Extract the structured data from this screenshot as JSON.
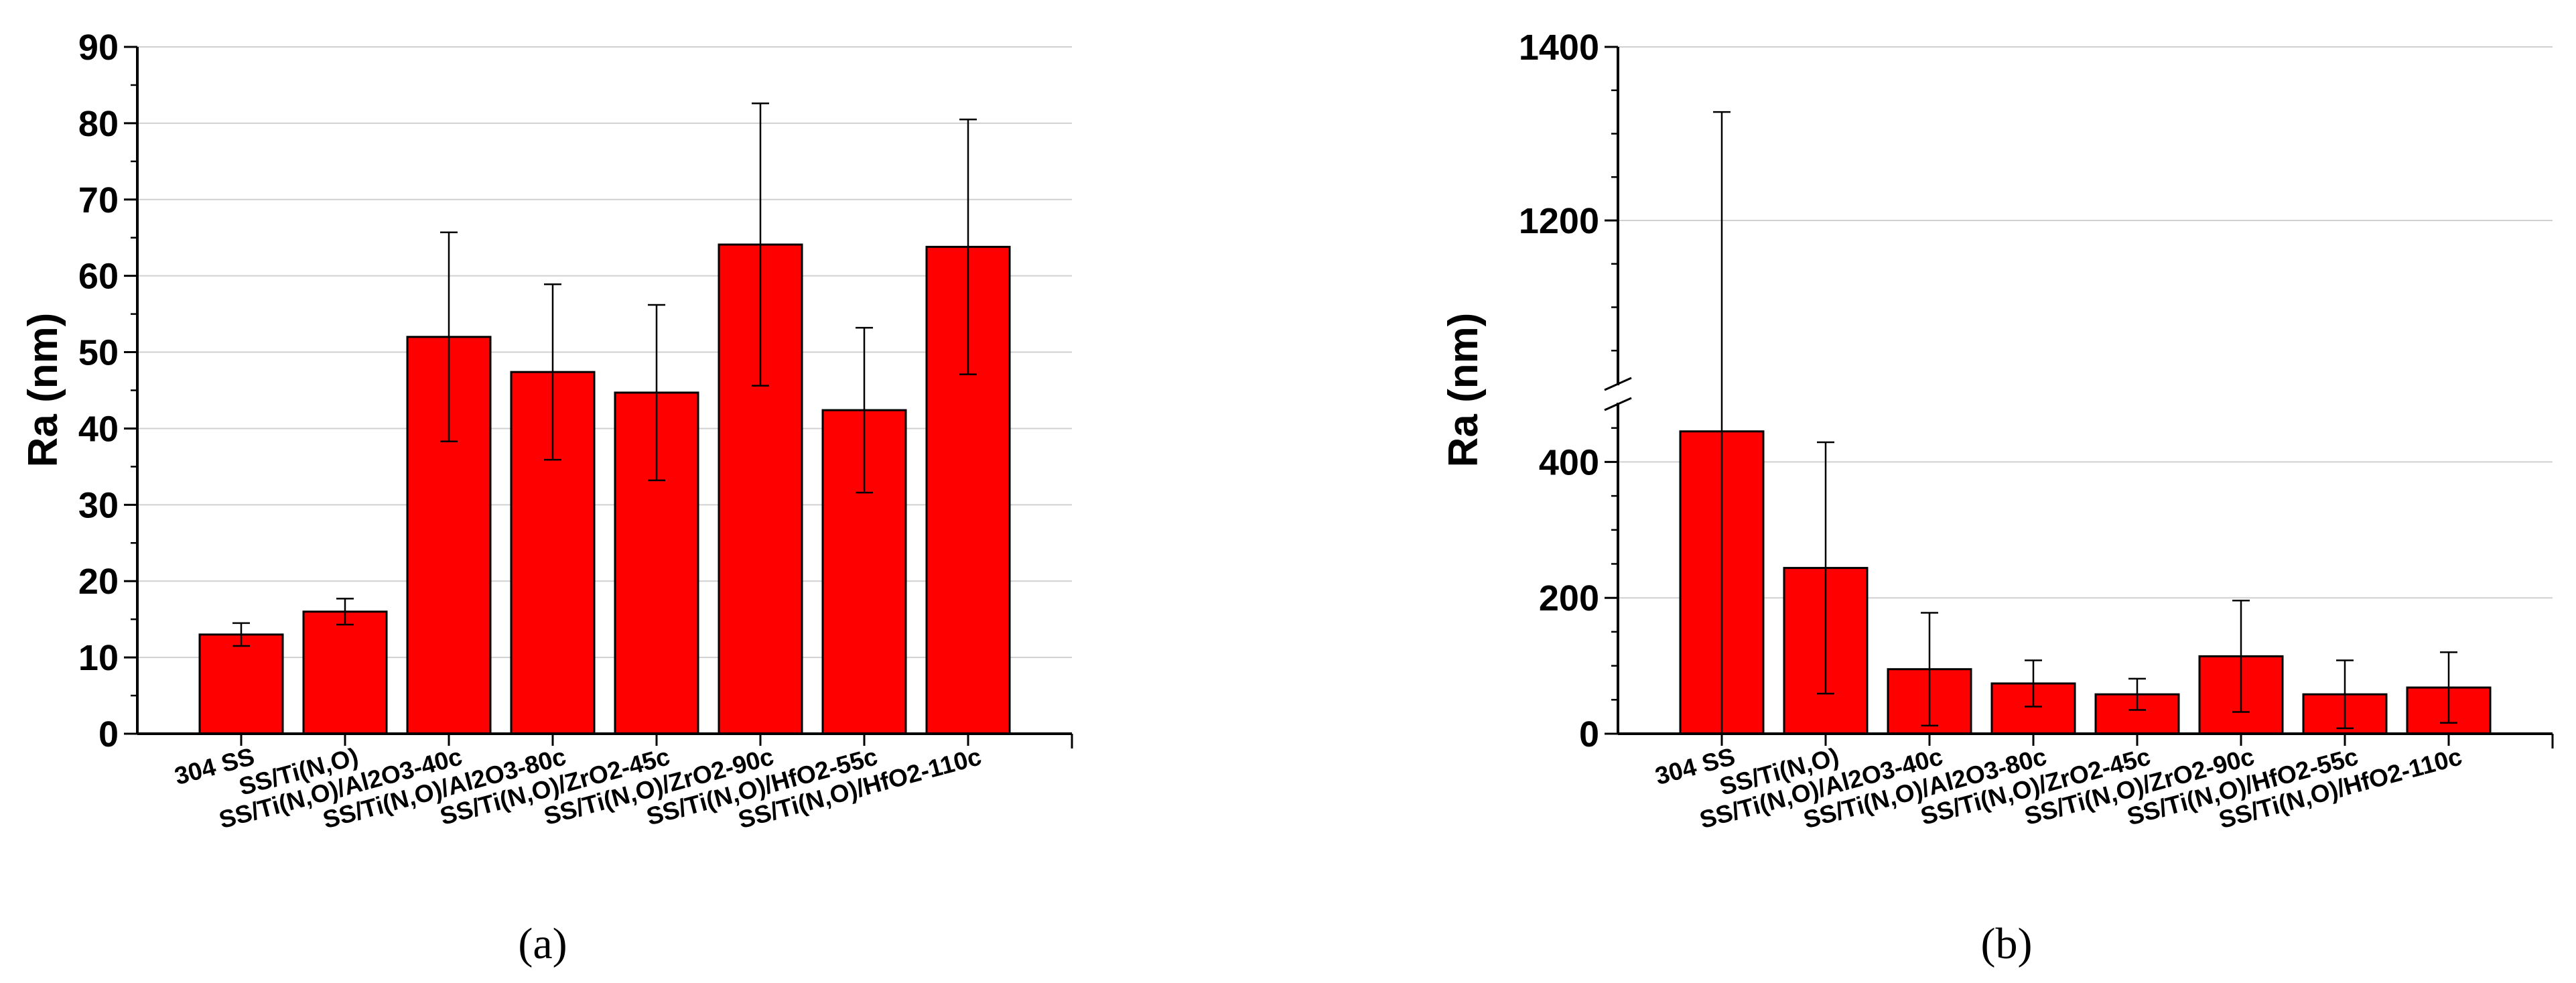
{
  "chart_data": [
    {
      "type": "bar",
      "panel_label": "(a)",
      "ylabel": "Ra (nm)",
      "ylim": [
        0,
        90
      ],
      "yticks": [
        "0",
        "10",
        "20",
        "30",
        "40",
        "50",
        "60",
        "70",
        "80",
        "90"
      ],
      "categories": [
        "304 SS",
        "SS/Ti(N,O)",
        "SS/Ti(N,O)/Al2O3-40c",
        "SS/Ti(N,O)/Al2O3-80c",
        "SS/Ti(N,O)/ZrO2-45c",
        "SS/Ti(N,O)/ZrO2-90c",
        "SS/Ti(N,O)/HfO2-55c",
        "SS/Ti(N,O)/HfO2-110c"
      ],
      "values": [
        13,
        16,
        52,
        47.4,
        44.7,
        64.1,
        42.4,
        63.8
      ],
      "error": [
        1.5,
        1.7,
        13.7,
        11.5,
        11.5,
        18.5,
        10.8,
        16.7
      ],
      "bar_color": "#ff0000",
      "grid": true,
      "legend": "none"
    },
    {
      "type": "bar",
      "panel_label": "(b)",
      "ylabel": "Ra (nm)",
      "y_axis_break": true,
      "ylim_lower": [
        0,
        500
      ],
      "ylim_upper": [
        1000,
        1400
      ],
      "yticks": [
        "0",
        "200",
        "400",
        "1200",
        "1400"
      ],
      "categories": [
        "304 SS",
        "SS/Ti(N,O)",
        "SS/Ti(N,O)/Al2O3-40c",
        "SS/Ti(N,O)/Al2O3-80c",
        "SS/Ti(N,O)/ZrO2-45c",
        "SS/Ti(N,O)/ZrO2-90c",
        "SS/Ti(N,O)/HfO2-55c",
        "SS/Ti(N,O)/HfO2-110c"
      ],
      "values": [
        445,
        244,
        95,
        74,
        58,
        114,
        58,
        68
      ],
      "error": [
        880,
        185,
        83,
        34,
        23,
        82,
        50,
        52
      ],
      "bar_color": "#ff0000",
      "grid": true,
      "legend": "none"
    }
  ]
}
